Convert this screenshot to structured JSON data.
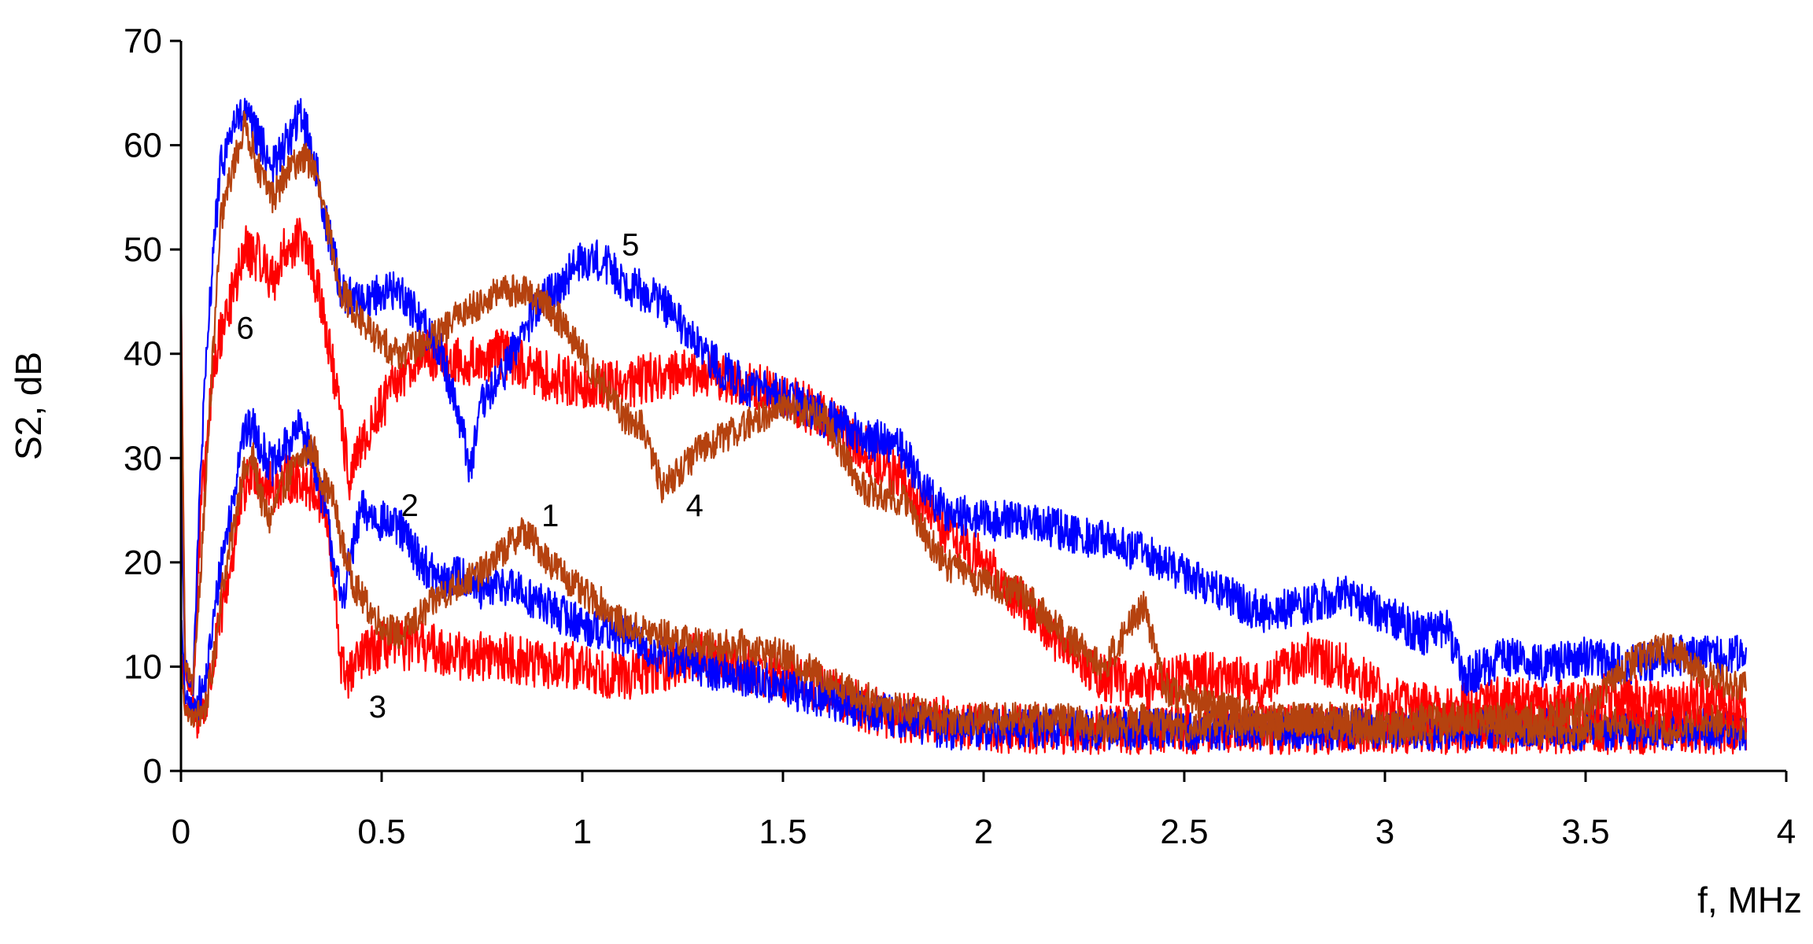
{
  "chart_data": {
    "type": "line",
    "title": "",
    "xlabel": "f, MHz",
    "ylabel": "S2, dB",
    "xlim": [
      0,
      4
    ],
    "ylim": [
      0,
      70
    ],
    "x_ticks": [
      0,
      0.5,
      1,
      1.5,
      2,
      2.5,
      3,
      3.5,
      4
    ],
    "x_tick_labels": [
      "0",
      "0.5",
      "1",
      "1.5",
      "2",
      "2.5",
      "3",
      "3.5",
      "4"
    ],
    "y_ticks": [
      0,
      10,
      20,
      30,
      40,
      50,
      60,
      70
    ],
    "y_tick_labels": [
      "0",
      "10",
      "20",
      "30",
      "40",
      "50",
      "60",
      "70"
    ],
    "grid": false,
    "legend": "none",
    "noise_amplitude": 1.6,
    "series": [
      {
        "label": "1",
        "color": "#B5420F",
        "label_at": [
          0.92,
          24.5
        ],
        "x": [
          0,
          0.01,
          0.03,
          0.06,
          0.08,
          0.1,
          0.13,
          0.15,
          0.18,
          0.2,
          0.22,
          0.25,
          0.28,
          0.3,
          0.33,
          0.35,
          0.38,
          0.4,
          0.43,
          0.46,
          0.5,
          0.55,
          0.6,
          0.65,
          0.7,
          0.75,
          0.8,
          0.85,
          0.88,
          0.92,
          0.95,
          1.0,
          1.05,
          1.1,
          1.2,
          1.3,
          1.4,
          1.5,
          1.6,
          1.7,
          1.8,
          1.9,
          2.0,
          2.1,
          2.2,
          2.3,
          2.4,
          2.5,
          2.6,
          2.7,
          2.8,
          2.9,
          3.0,
          3.1,
          3.2,
          3.3,
          3.4,
          3.5,
          3.6,
          3.7,
          3.8,
          3.9
        ],
        "y": [
          10,
          6,
          5,
          6,
          10,
          17,
          23,
          28,
          30,
          26,
          24,
          27,
          29,
          30,
          31,
          28,
          26,
          22,
          18,
          16,
          14,
          13,
          15,
          17,
          18,
          19,
          21,
          23,
          22,
          20,
          19,
          17,
          16,
          14,
          13,
          12,
          12,
          11,
          9,
          7,
          6,
          5,
          5,
          5,
          5,
          4,
          5,
          4,
          5,
          4,
          5,
          4,
          4,
          4,
          5,
          4,
          4,
          4,
          5,
          4,
          5,
          4
        ]
      },
      {
        "label": "2",
        "color": "#0000FF",
        "label_at": [
          0.57,
          25.5
        ],
        "x": [
          0,
          0.01,
          0.03,
          0.06,
          0.08,
          0.1,
          0.13,
          0.15,
          0.18,
          0.2,
          0.23,
          0.26,
          0.3,
          0.33,
          0.36,
          0.4,
          0.42,
          0.45,
          0.5,
          0.55,
          0.6,
          0.65,
          0.7,
          0.75,
          0.8,
          0.85,
          0.9,
          0.95,
          1.0,
          1.1,
          1.2,
          1.3,
          1.4,
          1.5,
          1.6,
          1.7,
          1.8,
          1.9,
          2.0,
          2.1,
          2.2,
          2.3,
          2.4,
          2.5,
          2.6,
          2.7,
          2.8,
          2.9,
          3.0,
          3.1,
          3.2,
          3.3,
          3.4,
          3.5,
          3.6,
          3.7,
          3.8,
          3.9
        ],
        "y": [
          15,
          7,
          6,
          8,
          14,
          20,
          26,
          32,
          33,
          31,
          29,
          31,
          33,
          30,
          25,
          16,
          20,
          25,
          24,
          23,
          20,
          18,
          19,
          17,
          18,
          17,
          16,
          15,
          14,
          13,
          11,
          10,
          9,
          8,
          7,
          6,
          5,
          4,
          4,
          4,
          4,
          4,
          4,
          4,
          4,
          4,
          4,
          4,
          4,
          4,
          4,
          4,
          4,
          4,
          4,
          4,
          4,
          4
        ]
      },
      {
        "label": "3",
        "color": "#FF0000",
        "label_at": [
          0.49,
          6.2
        ],
        "x": [
          0,
          0.01,
          0.03,
          0.06,
          0.08,
          0.1,
          0.13,
          0.15,
          0.18,
          0.2,
          0.23,
          0.26,
          0.3,
          0.33,
          0.36,
          0.38,
          0.4,
          0.42,
          0.45,
          0.5,
          0.6,
          0.7,
          0.8,
          0.9,
          1.0,
          1.1,
          1.2,
          1.3,
          1.4,
          1.5,
          1.6,
          1.7,
          1.8,
          1.9,
          2.0,
          2.1,
          2.2,
          2.3,
          2.4,
          2.5,
          2.6,
          2.7,
          2.8,
          2.9,
          3.0,
          3.1,
          3.2,
          3.3,
          3.4,
          3.5,
          3.6,
          3.7,
          3.8,
          3.9
        ],
        "y": [
          12,
          6,
          5,
          6,
          10,
          15,
          21,
          26,
          29,
          28,
          27,
          28,
          28,
          27,
          25,
          18,
          10,
          9,
          11,
          12,
          12,
          11,
          11,
          10,
          10,
          9,
          10,
          11,
          10,
          9,
          8,
          6,
          5,
          5,
          4,
          4,
          4,
          4,
          4,
          4,
          4,
          4,
          4,
          4,
          4,
          4,
          4,
          4,
          4,
          4,
          4,
          4,
          4,
          4
        ]
      },
      {
        "label": "4",
        "color": "#B5420F",
        "label_at": [
          1.28,
          25.5
        ],
        "x": [
          0,
          0.01,
          0.03,
          0.05,
          0.08,
          0.1,
          0.13,
          0.16,
          0.2,
          0.23,
          0.26,
          0.3,
          0.33,
          0.36,
          0.4,
          0.45,
          0.5,
          0.55,
          0.6,
          0.65,
          0.7,
          0.75,
          0.8,
          0.85,
          0.9,
          0.95,
          1.0,
          1.05,
          1.1,
          1.15,
          1.2,
          1.22,
          1.3,
          1.4,
          1.5,
          1.6,
          1.7,
          1.8,
          1.9,
          2.0,
          2.1,
          2.2,
          2.3,
          2.4,
          2.45,
          2.5,
          2.6,
          2.7,
          2.8,
          2.9,
          3.0,
          3.1,
          3.2,
          3.3,
          3.4,
          3.5,
          3.6,
          3.7,
          3.8,
          3.9
        ],
        "y": [
          45,
          10,
          8,
          20,
          40,
          53,
          58,
          62,
          57,
          55,
          57,
          59,
          58,
          53,
          46,
          43,
          41,
          40,
          41,
          42,
          44,
          45,
          46,
          46,
          45,
          43,
          40,
          37,
          34,
          33,
          27,
          28,
          31,
          33,
          35,
          34,
          27,
          26,
          20,
          18,
          17,
          13,
          10,
          16,
          8,
          7,
          6,
          5,
          5,
          5,
          4,
          5,
          5,
          5,
          5,
          6,
          10,
          12,
          9,
          8
        ]
      },
      {
        "label": "5",
        "color": "#0000FF",
        "label_at": [
          1.12,
          50.5
        ],
        "x": [
          0,
          0.01,
          0.03,
          0.05,
          0.08,
          0.1,
          0.13,
          0.16,
          0.2,
          0.23,
          0.26,
          0.3,
          0.33,
          0.36,
          0.4,
          0.45,
          0.5,
          0.55,
          0.6,
          0.65,
          0.7,
          0.72,
          0.75,
          0.8,
          0.85,
          0.9,
          0.95,
          1.0,
          1.05,
          1.1,
          1.15,
          1.2,
          1.3,
          1.4,
          1.5,
          1.6,
          1.7,
          1.8,
          1.85,
          1.9,
          2.0,
          2.1,
          2.2,
          2.3,
          2.4,
          2.5,
          2.6,
          2.7,
          2.8,
          2.9,
          3.0,
          3.1,
          3.15,
          3.2,
          3.3,
          3.4,
          3.5,
          3.6,
          3.7,
          3.8,
          3.9
        ],
        "y": [
          30,
          10,
          8,
          30,
          50,
          58,
          62,
          63,
          60,
          58,
          60,
          63,
          59,
          53,
          46,
          45,
          46,
          46,
          43,
          40,
          33,
          29,
          35,
          38,
          42,
          45,
          47,
          49,
          49,
          47,
          46,
          45,
          40,
          37,
          36,
          34,
          32,
          31,
          27,
          25,
          24,
          24,
          23,
          22,
          21,
          19,
          17,
          15,
          16,
          17,
          15,
          13,
          14,
          9,
          11,
          10,
          11,
          10,
          11,
          11,
          11
        ]
      },
      {
        "label": "6",
        "color": "#FF0000",
        "label_at": [
          0.16,
          42.5
        ],
        "x": [
          0,
          0.01,
          0.03,
          0.05,
          0.08,
          0.1,
          0.13,
          0.16,
          0.2,
          0.23,
          0.26,
          0.3,
          0.33,
          0.36,
          0.4,
          0.42,
          0.45,
          0.5,
          0.55,
          0.6,
          0.7,
          0.8,
          0.9,
          1.0,
          1.1,
          1.2,
          1.3,
          1.4,
          1.5,
          1.6,
          1.7,
          1.8,
          1.9,
          2.0,
          2.1,
          2.2,
          2.3,
          2.4,
          2.5,
          2.6,
          2.7,
          2.75,
          2.8,
          2.9,
          3.0,
          3.1,
          3.2,
          3.3,
          3.4,
          3.5,
          3.6,
          3.7,
          3.8,
          3.9
        ],
        "y": [
          47,
          10,
          7,
          25,
          38,
          42,
          46,
          50,
          49,
          47,
          50,
          51,
          48,
          43,
          33,
          28,
          31,
          35,
          38,
          40,
          39,
          40,
          38,
          37,
          37,
          38,
          38,
          37,
          36,
          34,
          31,
          28,
          23,
          20,
          16,
          12,
          9,
          8,
          9,
          9,
          8,
          10,
          11,
          10,
          7,
          6,
          6,
          7,
          6,
          7,
          7,
          6,
          7,
          6
        ]
      }
    ]
  }
}
